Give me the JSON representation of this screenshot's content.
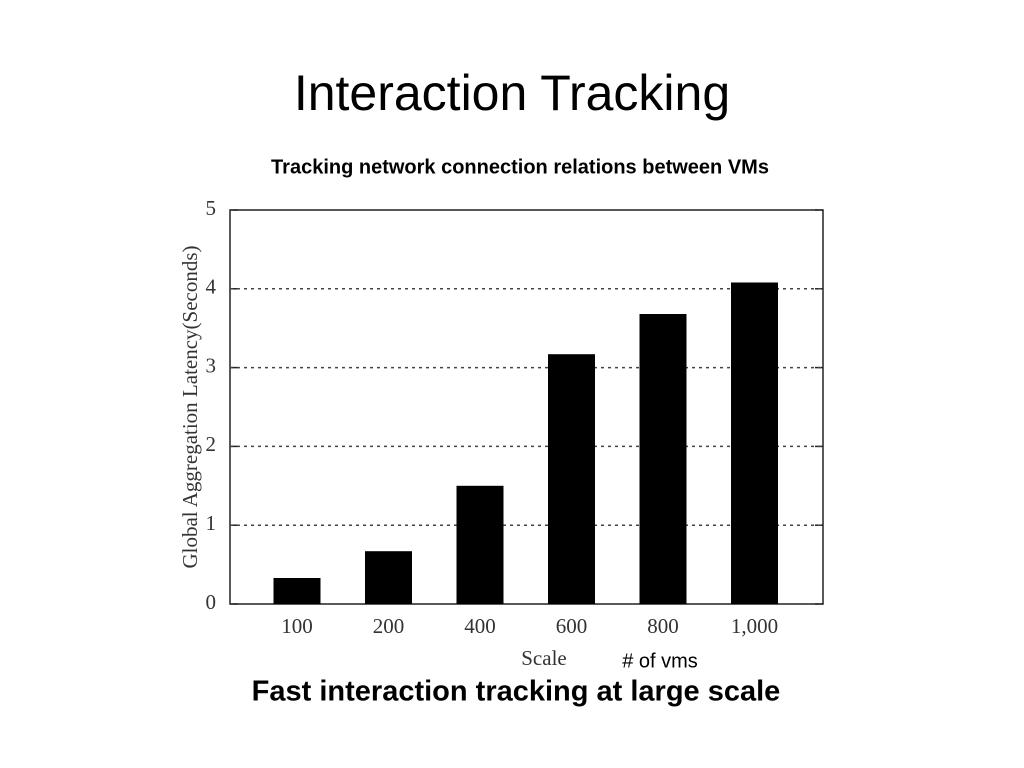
{
  "chart_data": {
    "type": "bar",
    "title": "Interaction Tracking",
    "subtitle": "Tracking network connection relations between VMs",
    "y_label": "Global Aggregation Latency(Seconds)",
    "x_label": "Scale",
    "annotation": "#  of vms",
    "caption": "Fast  interaction tracking at large scale",
    "categories": [
      "100",
      "200",
      "400",
      "600",
      "800",
      "1,000"
    ],
    "values": [
      0.33,
      0.67,
      1.5,
      3.17,
      3.68,
      4.08
    ],
    "color": "#000000",
    "ylim": [
      0,
      5
    ],
    "yticks": [
      0,
      1,
      2,
      3,
      4,
      5
    ],
    "grid": true
  }
}
